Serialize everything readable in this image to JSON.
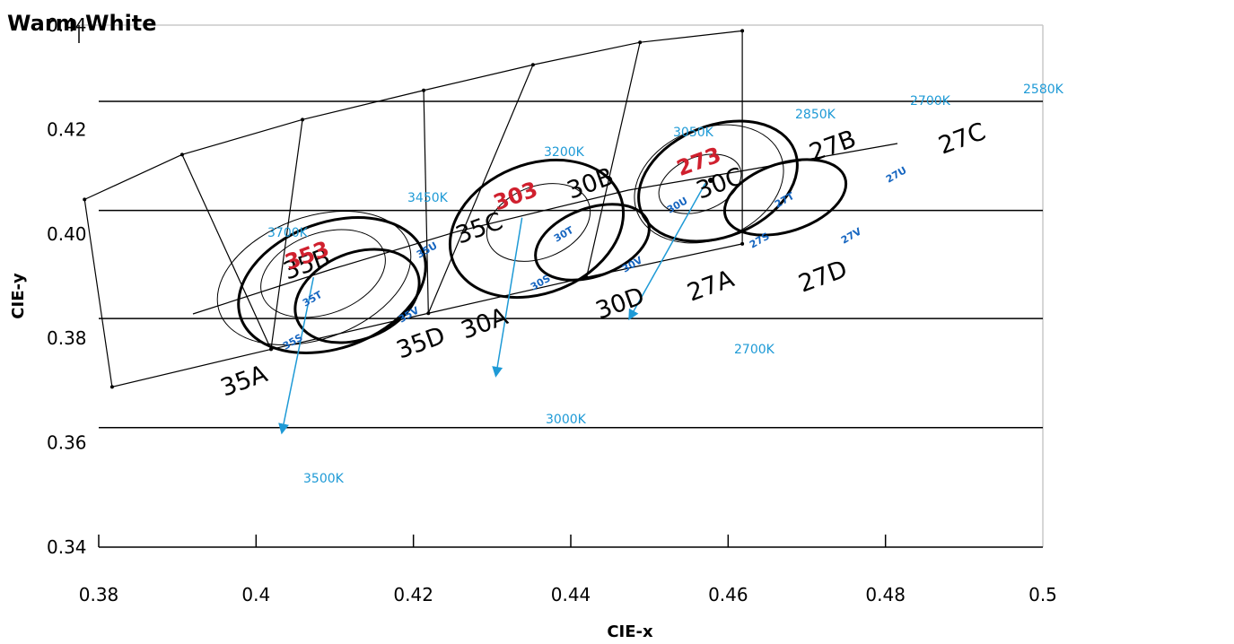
{
  "chart_data": {
    "type": "scatter",
    "title": "Warm White",
    "xlabel": "CIE-x",
    "ylabel": "CIE-y",
    "xlim": [
      0.38,
      0.5
    ],
    "ylim": [
      0.34,
      0.44
    ],
    "x_ticks": [
      "0.38",
      "0.4",
      "0.42",
      "0.44",
      "0.46",
      "0.48",
      "0.5"
    ],
    "y_ticks": [
      "0.34",
      "0.36",
      "0.38",
      "0.40",
      "0.42",
      "0.44"
    ],
    "horizontal_lines_y": [
      0.3629,
      0.3838,
      0.4045,
      0.4254
    ],
    "bin_outline_points": [
      {
        "x": 0.3817,
        "y": 0.3707
      },
      {
        "x": 0.4019,
        "y": 0.3779
      },
      {
        "x": 0.4219,
        "y": 0.3848
      },
      {
        "x": 0.442,
        "y": 0.3917
      },
      {
        "x": 0.4618,
        "y": 0.3981
      },
      {
        "x": 0.4618,
        "y": 0.4389
      },
      {
        "x": 0.4488,
        "y": 0.4367
      },
      {
        "x": 0.4352,
        "y": 0.4324
      },
      {
        "x": 0.4213,
        "y": 0.4275
      },
      {
        "x": 0.4059,
        "y": 0.4219
      },
      {
        "x": 0.3906,
        "y": 0.4152
      },
      {
        "x": 0.3782,
        "y": 0.4066
      }
    ],
    "bin_labels": [
      "35A",
      "35B",
      "35C",
      "35D",
      "30A",
      "30B",
      "30C",
      "30D",
      "27A",
      "27B",
      "27C",
      "27D"
    ],
    "sub_bin_labels": [
      "35S",
      "35T",
      "35U",
      "35V",
      "30S",
      "30T",
      "30U",
      "30V",
      "27S",
      "27T",
      "27U",
      "27V"
    ],
    "cct_labels": [
      "3700K",
      "3450K",
      "3200K",
      "3050K",
      "2850K",
      "2700K",
      "2580K",
      "2700K",
      "3000K",
      "3500K"
    ],
    "code_points": [
      {
        "label": "353",
        "x": 0.4073,
        "y": 0.3917,
        "target_x": 0.4033,
        "target_y": 0.3621
      },
      {
        "label": "303",
        "x": 0.4338,
        "y": 0.4031,
        "target_x": 0.4305,
        "target_y": 0.373
      },
      {
        "label": "273",
        "x": 0.4571,
        "y": 0.4097,
        "target_x": 0.4475,
        "target_y": 0.3839
      }
    ],
    "colors": {
      "code_label": "#d0202e",
      "cct_label": "#1e9ad6",
      "sub_bin_label": "#1565c0",
      "axis": "#000000",
      "frame": "#c8c8c8"
    }
  }
}
